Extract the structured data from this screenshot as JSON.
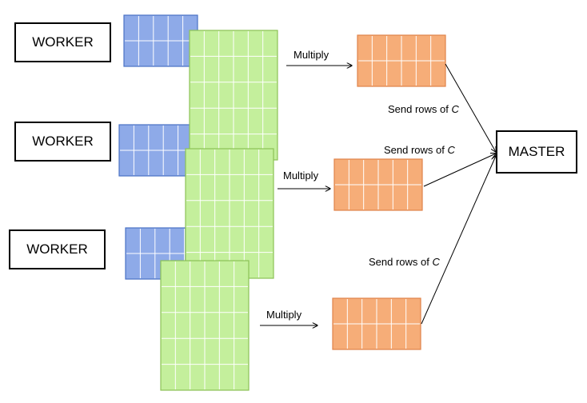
{
  "workers": [
    {
      "label": "WORKER"
    },
    {
      "label": "WORKER"
    },
    {
      "label": "WORKER"
    }
  ],
  "master": {
    "label": "MASTER"
  },
  "multiply_labels": [
    "Multiply",
    "Multiply",
    "Multiply"
  ],
  "send_labels": [
    {
      "prefix": "Send rows of ",
      "var": "C"
    },
    {
      "prefix": "Send rows of ",
      "var": "C"
    },
    {
      "prefix": "Send rows of ",
      "var": "C"
    }
  ],
  "colors": {
    "blue_fill": "#8eaae8",
    "blue_stroke": "#4a72c4",
    "green_fill": "#c4ef9c",
    "green_stroke": "#8cc256",
    "orange_fill": "#f6ad78",
    "orange_stroke": "#e0834a",
    "grid_line": "#ffffff"
  }
}
